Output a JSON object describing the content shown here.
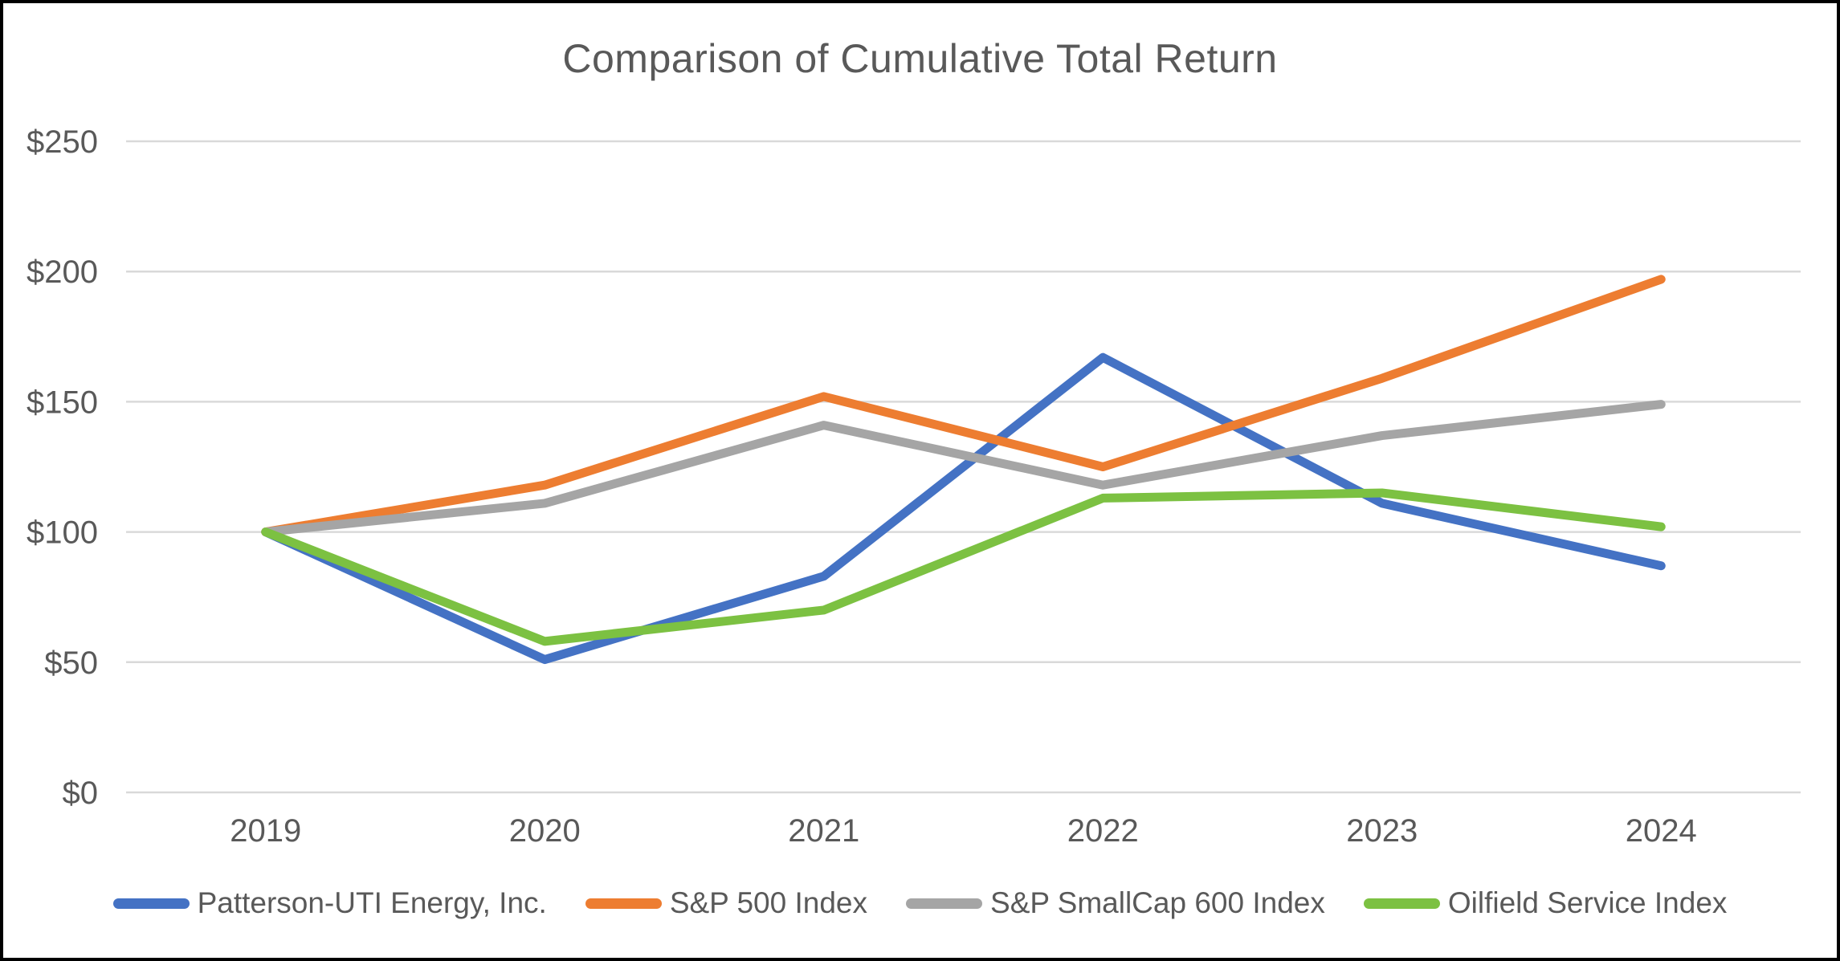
{
  "chart_data": {
    "type": "line",
    "title": "Comparison of Cumulative Total Return",
    "categories": [
      "2019",
      "2020",
      "2021",
      "2022",
      "2023",
      "2024"
    ],
    "series": [
      {
        "name": "Patterson-UTI Energy, Inc.",
        "color": "#4472C4",
        "values": [
          100,
          51,
          83,
          167,
          111,
          87
        ]
      },
      {
        "name": "S&P 500 Index",
        "color": "#ED7D31",
        "values": [
          100,
          118,
          152,
          125,
          159,
          197
        ]
      },
      {
        "name": "S&P SmallCap 600 Index",
        "color": "#A5A5A5",
        "values": [
          100,
          111,
          141,
          118,
          137,
          149
        ]
      },
      {
        "name": "Oilfield Service Index",
        "color": "#7CC142",
        "values": [
          100,
          58,
          70,
          113,
          115,
          102
        ]
      }
    ],
    "y_axis": {
      "min": 0,
      "max": 250,
      "tick_step": 50,
      "tick_labels": [
        "$0",
        "$50",
        "$100",
        "$150",
        "$200",
        "$250"
      ]
    },
    "x_axis": {
      "tick_labels": [
        "2019",
        "2020",
        "2021",
        "2022",
        "2023",
        "2024"
      ]
    },
    "ylim": [
      0,
      250
    ],
    "grid": "horizontal",
    "legend_position": "bottom"
  },
  "style": {
    "text_color": "#595959",
    "gridline_color": "#D9D9D9",
    "background_color": "#FFFFFF",
    "frame_color": "#000000"
  }
}
